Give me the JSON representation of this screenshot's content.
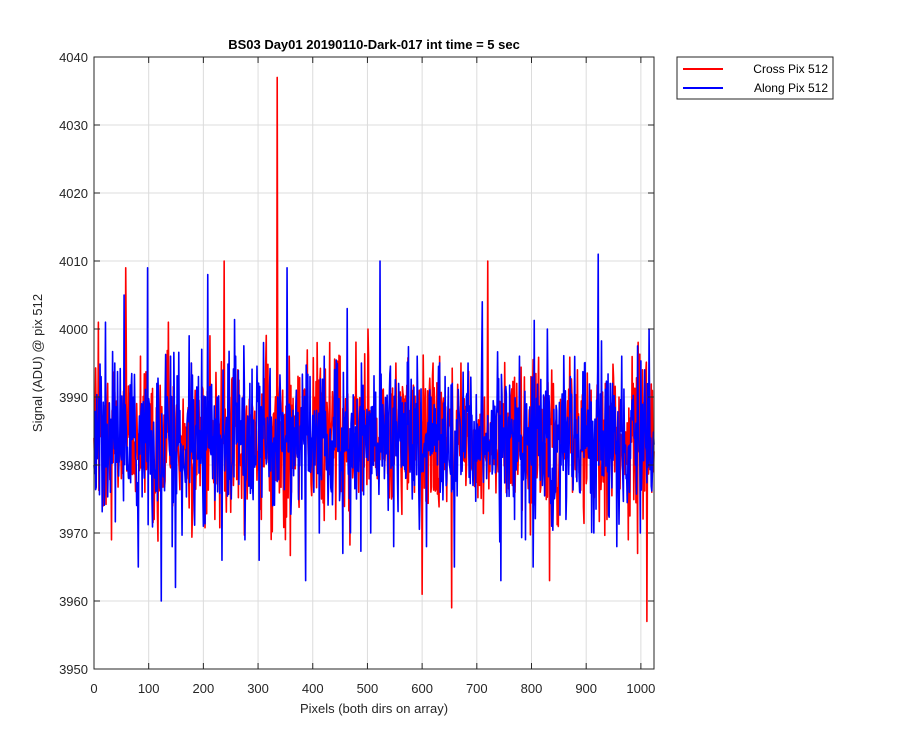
{
  "chart_data": {
    "type": "line",
    "title": "BS03 Day01 20190110-Dark-017 int time = 5 sec",
    "xlabel": "Pixels (both dirs on array)",
    "ylabel": "Signal (ADU) @ pix 512",
    "xlim": [
      0,
      1024
    ],
    "ylim": [
      3950,
      4040
    ],
    "x_ticks": [
      "0",
      "100",
      "200",
      "300",
      "400",
      "500",
      "600",
      "700",
      "800",
      "900",
      "1000"
    ],
    "y_ticks": [
      "3950",
      "3960",
      "3970",
      "3980",
      "3990",
      "4000",
      "4010",
      "4020",
      "4030",
      "4040"
    ],
    "grid": true,
    "legend_position": "outside-top-right",
    "series": [
      {
        "name": "Cross Pix 512",
        "color": "#ff0000",
        "mean": 3984,
        "x": [
          0,
          8,
          17,
          25,
          32,
          42,
          50,
          58,
          67,
          75,
          85,
          93,
          102,
          110,
          119,
          127,
          136,
          144,
          153,
          161,
          170,
          178,
          187,
          195,
          204,
          212,
          221,
          229,
          238,
          246,
          255,
          263,
          272,
          280,
          289,
          297,
          306,
          314,
          323,
          331,
          335,
          340,
          348,
          357,
          365,
          374,
          382,
          391,
          399,
          408,
          416,
          425,
          433,
          442,
          450,
          459,
          467,
          476,
          484,
          493,
          501,
          510,
          518,
          527,
          535,
          544,
          552,
          561,
          569,
          578,
          586,
          595,
          600,
          612,
          620,
          629,
          637,
          646,
          654,
          663,
          671,
          680,
          688,
          697,
          705,
          714,
          720,
          731,
          739,
          748,
          756,
          765,
          773,
          782,
          790,
          799,
          807,
          816,
          824,
          833,
          841,
          850,
          858,
          867,
          875,
          884,
          892,
          901,
          909,
          918,
          926,
          935,
          943,
          952,
          960,
          969,
          977,
          986,
          994,
          1003,
          1011,
          1020,
          1024
        ],
        "y": [
          3984,
          4001,
          3974,
          3992,
          3969,
          3989,
          3978,
          4009,
          3985,
          3980,
          3996,
          3976,
          3989,
          3972,
          3988,
          3983,
          4001,
          3974,
          3990,
          3982,
          3978,
          3995,
          3980,
          3987,
          3976,
          3999,
          3972,
          3986,
          4010,
          3981,
          3977,
          3994,
          3983,
          3975,
          3989,
          3985,
          3972,
          3995,
          3980,
          3988,
          4037,
          3984,
          3978,
          3996,
          3982,
          3976,
          3991,
          3984,
          3980,
          3998,
          3975,
          3987,
          3983,
          3972,
          3996,
          3985,
          3980,
          3990,
          3976,
          3987,
          4000,
          3982,
          3978,
          3991,
          3984,
          3975,
          3995,
          3982,
          3979,
          3988,
          3976,
          3991,
          3961,
          3985,
          3995,
          3978,
          3989,
          3984,
          3959,
          3988,
          3995,
          3977,
          3986,
          3983,
          3977,
          3990,
          4010,
          3982,
          3979,
          3989,
          3984,
          3977,
          3992,
          3982,
          3978,
          3993,
          3983,
          3976,
          3990,
          3963,
          3986,
          3979,
          3990,
          3983,
          3976,
          3994,
          3982,
          3978,
          3991,
          3986,
          3977,
          3992,
          3981,
          3979,
          3990,
          3984,
          3969,
          3992,
          3967,
          3994,
          3957,
          3976,
          3982
        ]
      },
      {
        "name": "Along Pix 512",
        "color": "#0000ff",
        "mean": 3984,
        "x": [
          0,
          12,
          21,
          30,
          38,
          47,
          55,
          64,
          72,
          81,
          89,
          98,
          106,
          115,
          123,
          132,
          140,
          149,
          157,
          166,
          174,
          183,
          191,
          200,
          208,
          217,
          225,
          234,
          242,
          251,
          259,
          268,
          276,
          285,
          293,
          302,
          310,
          319,
          327,
          336,
          344,
          353,
          361,
          370,
          378,
          387,
          395,
          404,
          412,
          421,
          429,
          438,
          446,
          455,
          463,
          472,
          480,
          489,
          497,
          506,
          514,
          523,
          531,
          540,
          548,
          557,
          565,
          574,
          582,
          591,
          599,
          608,
          616,
          625,
          633,
          642,
          650,
          659,
          667,
          676,
          684,
          693,
          701,
          710,
          718,
          727,
          735,
          744,
          752,
          761,
          769,
          778,
          786,
          795,
          803,
          812,
          820,
          829,
          837,
          846,
          854,
          863,
          871,
          880,
          888,
          897,
          905,
          914,
          922,
          931,
          939,
          948,
          956,
          965,
          973,
          982,
          990,
          999,
          1007,
          1015,
          1024
        ],
        "y": [
          3980,
          3989,
          4001,
          3976,
          3995,
          3982,
          4005,
          3978,
          3990,
          3965,
          3986,
          4009,
          3975,
          3992,
          3960,
          3984,
          3996,
          3962,
          3988,
          3979,
          3999,
          3975,
          3993,
          3971,
          4008,
          3978,
          3990,
          3966,
          3987,
          3975,
          3996,
          3983,
          3969,
          3992,
          3980,
          3966,
          3998,
          3985,
          3974,
          3990,
          3982,
          4009,
          3976,
          3991,
          3984,
          3963,
          3993,
          3980,
          3970,
          3996,
          3978,
          3987,
          3982,
          3967,
          4003,
          3980,
          3975,
          3995,
          3983,
          3970,
          3987,
          4010,
          3978,
          3990,
          3968,
          3992,
          3980,
          3986,
          3975,
          3996,
          3979,
          3968,
          3990,
          3982,
          3976,
          3993,
          3980,
          3965,
          3988,
          3982,
          3995,
          3977,
          3986,
          4004,
          3978,
          3988,
          3980,
          3963,
          3991,
          3984,
          3972,
          3996,
          3980,
          3984,
          3965,
          3987,
          3977,
          4000,
          3971,
          3988,
          3980,
          3972,
          3993,
          3984,
          3976,
          3995,
          3981,
          3970,
          4011,
          3985,
          3979,
          3992,
          3968,
          3996,
          3978,
          3988,
          3980,
          3970,
          3994,
          4000,
          3983
        ]
      }
    ]
  }
}
